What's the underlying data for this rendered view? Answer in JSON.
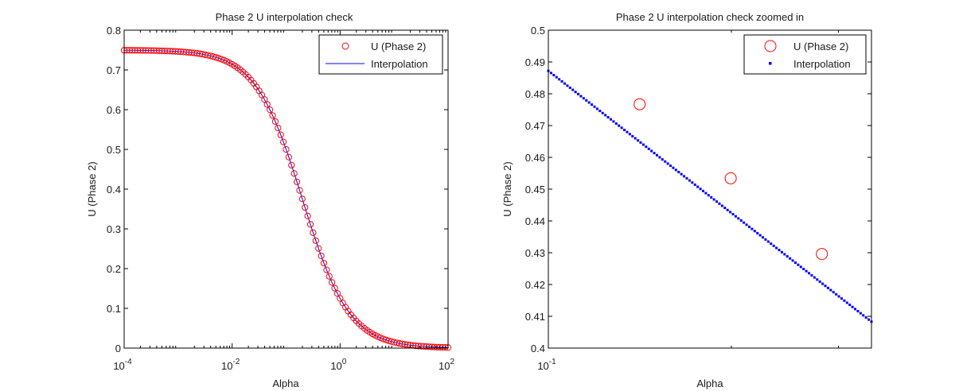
{
  "chart_data": [
    {
      "type": "scatter",
      "title": "Phase 2 U interpolation check",
      "xlabel": "Alpha",
      "ylabel": "U (Phase 2)",
      "xscale": "log",
      "xlim": [
        0.0001,
        100
      ],
      "ylim": [
        0,
        0.8
      ],
      "xticks": [
        {
          "value": 0.0001,
          "base": "10",
          "exp": "-4"
        },
        {
          "value": 0.01,
          "base": "10",
          "exp": "-2"
        },
        {
          "value": 1,
          "base": "10",
          "exp": "0"
        },
        {
          "value": 100,
          "base": "10",
          "exp": "2"
        }
      ],
      "yticks": [
        0,
        0.1,
        0.2,
        0.3,
        0.4,
        0.5,
        0.6,
        0.7,
        0.8
      ],
      "ytick_labels": [
        "0",
        "0.1",
        "0.2",
        "0.3",
        "0.4",
        "0.5",
        "0.6",
        "0.7",
        "0.8"
      ],
      "grid": false,
      "legend_position": "top-right",
      "curve_model": {
        "u_max": 0.75,
        "alpha_half": 0.2
      },
      "series": [
        {
          "name": "U (Phase 2)",
          "kind": "markers",
          "marker": "circle",
          "color": "#ff0000",
          "log10_x_from": -4,
          "log10_x_to": 2,
          "count": 121
        },
        {
          "name": "Interpolation",
          "kind": "line",
          "color": "#0000ff",
          "log10_x_from": -4,
          "log10_x_to": 2,
          "count": 241
        }
      ]
    },
    {
      "type": "scatter",
      "title": "Phase 2 U interpolation check zoomed in",
      "xlabel": "Alpha",
      "ylabel": "U (Phase 2)",
      "xscale": "log",
      "xlim": [
        0.1,
        0.34
      ],
      "ylim": [
        0.4,
        0.5
      ],
      "xticks": [
        {
          "value": 0.1,
          "base": "10",
          "exp": "-1"
        }
      ],
      "yticks": [
        0.4,
        0.41,
        0.42,
        0.43,
        0.44,
        0.45,
        0.46,
        0.47,
        0.48,
        0.49,
        0.5
      ],
      "ytick_labels": [
        "0.4",
        "0.41",
        "0.42",
        "0.43",
        "0.44",
        "0.45",
        "0.46",
        "0.47",
        "0.48",
        "0.49",
        "0.5"
      ],
      "grid": false,
      "legend_position": "top-right",
      "series": [
        {
          "name": "U (Phase 2)",
          "kind": "markers",
          "marker": "circle",
          "color": "#ff0000",
          "x": [
            0.1413,
            0.1995,
            0.2818
          ],
          "y": [
            0.4767,
            0.4534,
            0.4296
          ]
        },
        {
          "name": "Interpolation",
          "kind": "dots",
          "marker": "point",
          "color": "#0000ff",
          "x_from": 0.1,
          "x_to": 0.34,
          "y_from": 0.4872,
          "y_to": 0.4083,
          "count": 120
        }
      ]
    }
  ]
}
